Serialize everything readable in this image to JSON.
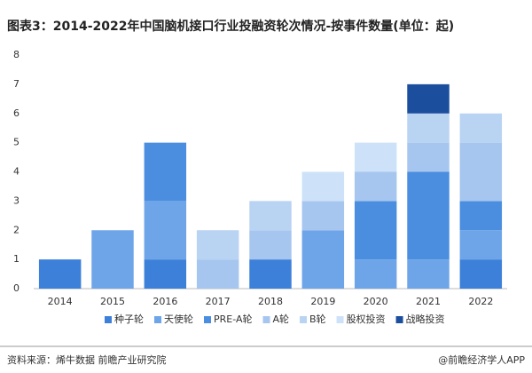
{
  "chart_data": {
    "type": "bar",
    "stacked": true,
    "title": "图表3：2014-2022年中国脑机接口行业投融资轮次情况-按事件数量(单位：起)",
    "source": "资料来源：烯牛数据 前瞻产业研究院",
    "brand": "@前瞻经济学人APP",
    "categories": [
      "2014",
      "2015",
      "2016",
      "2017",
      "2018",
      "2019",
      "2020",
      "2021",
      "2022"
    ],
    "series": [
      {
        "name": "种子轮",
        "color": "#3d80d9",
        "values": [
          1,
          0,
          1,
          0,
          1,
          0,
          0,
          0,
          1
        ]
      },
      {
        "name": "天使轮",
        "color": "#6ea5e8",
        "values": [
          0,
          2,
          2,
          0,
          0,
          2,
          1,
          1,
          1
        ]
      },
      {
        "name": "PRE-A轮",
        "color": "#4b8ee0",
        "values": [
          0,
          0,
          2,
          0,
          0,
          0,
          2,
          3,
          1
        ]
      },
      {
        "name": "A轮",
        "color": "#a6c6ef",
        "values": [
          0,
          0,
          0,
          1,
          1,
          1,
          1,
          1,
          2
        ]
      },
      {
        "name": "B轮",
        "color": "#b9d3f3",
        "values": [
          0,
          0,
          0,
          1,
          1,
          0,
          0,
          1,
          1
        ]
      },
      {
        "name": "股权投资",
        "color": "#cde2f9",
        "values": [
          0,
          0,
          0,
          0,
          0,
          1,
          1,
          0,
          0
        ]
      },
      {
        "name": "战略投资",
        "color": "#1c4e9e",
        "values": [
          0,
          0,
          0,
          0,
          0,
          0,
          0,
          1,
          0
        ]
      }
    ],
    "ylim": [
      0,
      8
    ],
    "yticks": [
      0,
      1,
      2,
      3,
      4,
      5,
      6,
      7,
      8
    ],
    "grid": false,
    "legend": "bottom"
  }
}
